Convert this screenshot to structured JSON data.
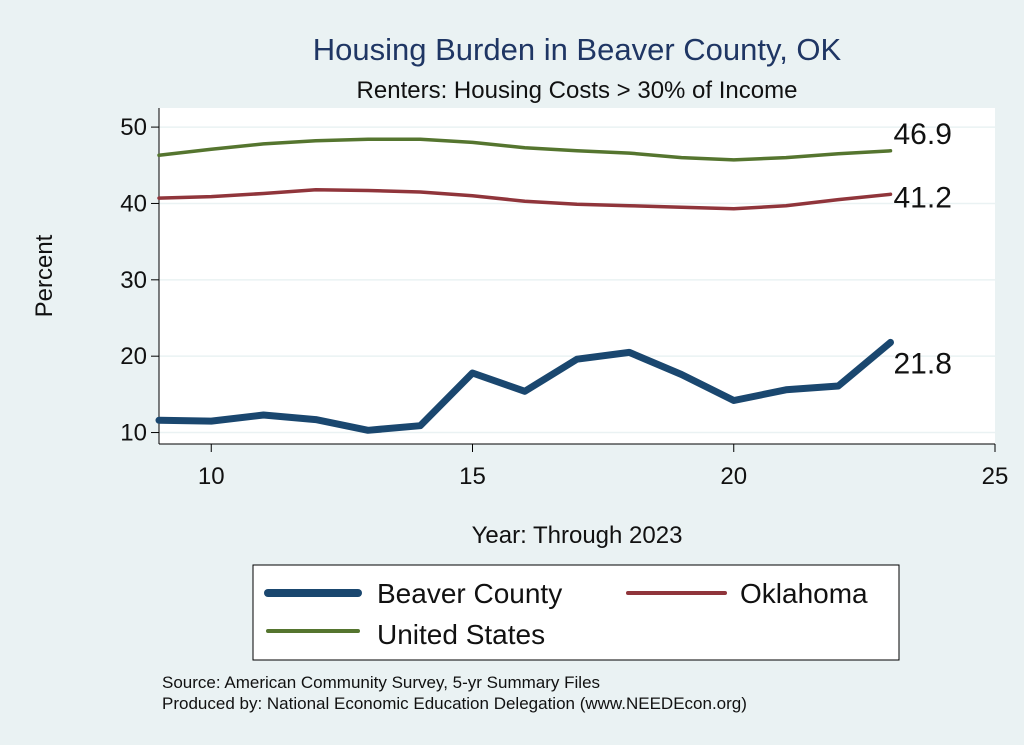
{
  "chart_data": {
    "type": "line",
    "title": "Housing Burden in Beaver County, OK",
    "subtitle": "Renters: Housing Costs > 30% of Income",
    "xlabel": "Year: Through 2023",
    "ylabel": "Percent",
    "xlim": [
      9,
      25
    ],
    "ylim": [
      8.5,
      52.5
    ],
    "xticks": [
      10,
      15,
      20,
      25
    ],
    "yticks": [
      10,
      20,
      30,
      40,
      50
    ],
    "grid": true,
    "x": [
      9,
      10,
      11,
      12,
      13,
      14,
      15,
      16,
      17,
      18,
      19,
      20,
      21,
      22,
      23
    ],
    "series": [
      {
        "name": "Beaver County",
        "color": "#1a476f",
        "values": [
          11.6,
          11.5,
          12.3,
          11.7,
          10.3,
          10.9,
          17.8,
          15.4,
          19.6,
          20.5,
          17.6,
          14.2,
          15.6,
          16.1,
          21.8
        ],
        "end_label": "21.8"
      },
      {
        "name": "Oklahoma",
        "color": "#90353b",
        "values": [
          40.7,
          40.9,
          41.3,
          41.8,
          41.7,
          41.5,
          41.0,
          40.3,
          39.9,
          39.7,
          39.5,
          39.3,
          39.7,
          40.5,
          41.2
        ],
        "end_label": "41.2"
      },
      {
        "name": "United States",
        "color": "#55752f",
        "values": [
          46.3,
          47.1,
          47.8,
          48.2,
          48.4,
          48.4,
          48.0,
          47.3,
          46.9,
          46.6,
          46.0,
          45.7,
          46.0,
          46.5,
          46.9
        ],
        "end_label": "46.9"
      }
    ],
    "source_lines": [
      "Source: American Community Survey, 5-yr Summary Files",
      "Produced by: National Economic Education Delegation (www.NEEDEcon.org)"
    ]
  }
}
